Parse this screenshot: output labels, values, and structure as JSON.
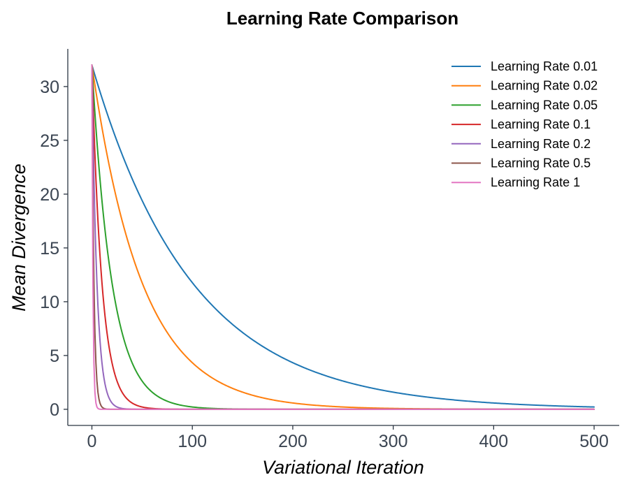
{
  "chart_data": {
    "type": "line",
    "title": "Learning Rate Comparison",
    "xlabel": "Variational Iteration",
    "ylabel": "Mean Divergence",
    "xlim": [
      -24,
      525
    ],
    "ylim": [
      -1.5,
      33.5
    ],
    "x_ticks": [
      0,
      100,
      200,
      300,
      400,
      500
    ],
    "y_ticks": [
      0,
      5,
      10,
      15,
      20,
      25,
      30
    ],
    "grid": false,
    "legend_position": "top-right",
    "initial_value": 32,
    "x_range": [
      0,
      500
    ],
    "series": [
      {
        "name": "Learning Rate 0.01",
        "learning_rate": 0.01,
        "color": "#1f77b4"
      },
      {
        "name": "Learning Rate 0.02",
        "learning_rate": 0.02,
        "color": "#ff7f0e"
      },
      {
        "name": "Learning Rate 0.05",
        "learning_rate": 0.05,
        "color": "#2ca02c"
      },
      {
        "name": "Learning Rate 0.1",
        "learning_rate": 0.1,
        "color": "#d62728"
      },
      {
        "name": "Learning Rate 0.2",
        "learning_rate": 0.2,
        "color": "#9467bd"
      },
      {
        "name": "Learning Rate 0.5",
        "learning_rate": 0.5,
        "color": "#8c564b"
      },
      {
        "name": "Learning Rate 1",
        "learning_rate": 1,
        "color": "#e377c2"
      }
    ]
  }
}
